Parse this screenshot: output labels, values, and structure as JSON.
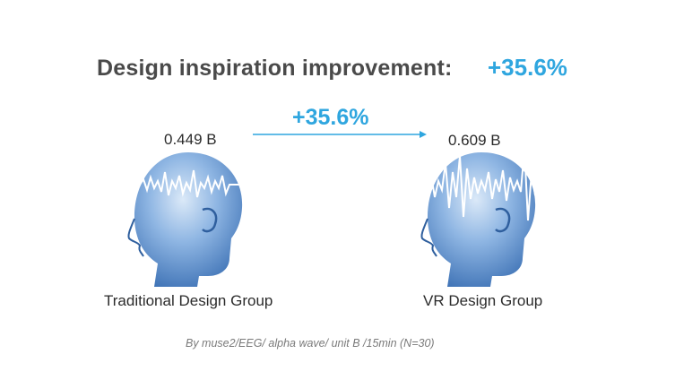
{
  "title": {
    "text": "Design inspiration improvement:",
    "improvement": "+35.6%"
  },
  "arrow": {
    "label": "+35.6%"
  },
  "groups": [
    {
      "name": "Traditional Design Group",
      "value": "0.449 B"
    },
    {
      "name": "VR Design Group",
      "value": "0.609 B"
    }
  ],
  "footnote": "By muse2/EEG/ alpha wave/ unit B /15min (N=30)",
  "colors": {
    "accent": "#2fa6df",
    "head": "#4f86c6",
    "text": "#2b2b2b"
  },
  "icons": [
    "head-eeg-icon-traditional",
    "head-eeg-icon-vr",
    "arrow-right-icon"
  ]
}
